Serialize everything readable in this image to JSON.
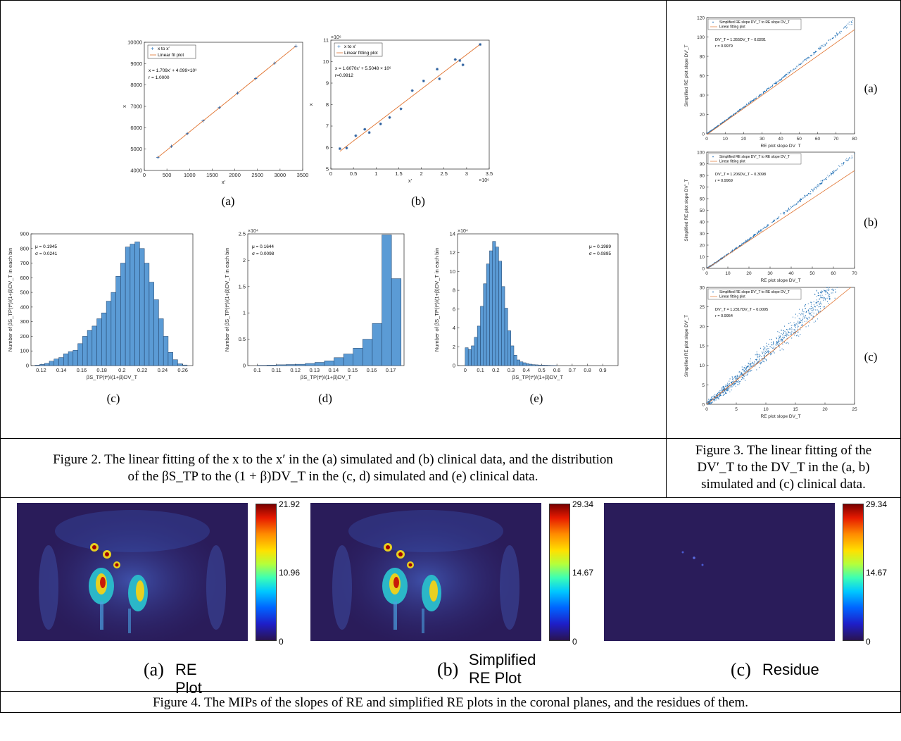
{
  "fig2": {
    "caption_line1": "Figure 2. The linear fitting of the x to the x′ in the (a) simulated and (b) clinical data, and the distribution",
    "caption_line2": "of the βS_TP to the (1 + β)DV_T in the (c, d) simulated and (e) clinical data.",
    "labels": [
      "(a)",
      "(b)",
      "(c)",
      "(d)",
      "(e)"
    ]
  },
  "fig3": {
    "caption_line1": "Figure 3. The linear fitting of the",
    "caption_line2": "DV′_T to the DV_T in the (a, b)",
    "caption_line3": "simulated and (c) clinical data.",
    "labels": [
      "(a)",
      "(b)",
      "(c)"
    ]
  },
  "fig4": {
    "caption": "Figure 4. The MIPs of the slopes of RE and simplified RE plots in the coronal planes, and the residues of them.",
    "panels": [
      {
        "letter": "(a)",
        "title_line1": "RE Plot",
        "title_line2": "",
        "cbar_max": "21.92",
        "cbar_mid": "10.96",
        "cbar_min": "0"
      },
      {
        "letter": "(b)",
        "title_line1": "Simplified",
        "title_line2": "RE Plot",
        "cbar_max": "29.34",
        "cbar_mid": "14.67",
        "cbar_min": "0"
      },
      {
        "letter": "(c)",
        "title_line1": "Residue",
        "title_line2": "",
        "cbar_max": "29.34",
        "cbar_mid": "14.67",
        "cbar_min": "0"
      }
    ]
  },
  "chart_data": [
    {
      "id": "fig2a",
      "type": "scatter",
      "xlabel": "x′",
      "ylabel": "x",
      "xlim": [
        0,
        3500
      ],
      "ylim": [
        4000,
        10000
      ],
      "xticks": [
        0,
        500,
        1000,
        1500,
        2000,
        2500,
        3000,
        3500
      ],
      "yticks": [
        4000,
        5000,
        6000,
        7000,
        8000,
        9000,
        10000
      ],
      "legend": [
        "x to x′",
        "Linear fit plot"
      ],
      "annotations": [
        "x = 1.709x′ + 4.099×10³",
        "r = 1.0000"
      ],
      "points": [
        [
          300,
          4610
        ],
        [
          600,
          5130
        ],
        [
          950,
          5720
        ],
        [
          1300,
          6320
        ],
        [
          1660,
          6940
        ],
        [
          2060,
          7620
        ],
        [
          2460,
          8300
        ],
        [
          2880,
          9020
        ],
        [
          3350,
          9820
        ]
      ],
      "fit": {
        "slope": 1.709,
        "intercept": 4099
      }
    },
    {
      "id": "fig2b",
      "type": "scatter",
      "xlabel": "x′",
      "ylabel": "x",
      "xlim": [
        0,
        3.5
      ],
      "ylim": [
        5,
        11
      ],
      "x_exponent": "×10⁶",
      "y_exponent": "×10⁶",
      "xticks": [
        0,
        0.5,
        1,
        1.5,
        2,
        2.5,
        3,
        3.5
      ],
      "yticks": [
        5,
        6,
        7,
        8,
        9,
        10,
        11
      ],
      "legend": [
        "x to x′",
        "Linear fitting plot"
      ],
      "annotations": [
        "x = 1.6070x′ + 5.5048 × 10⁶",
        "r=0.9912"
      ],
      "points": [
        [
          0.2,
          5.95
        ],
        [
          0.35,
          5.98
        ],
        [
          0.55,
          6.55
        ],
        [
          0.75,
          6.85
        ],
        [
          0.85,
          6.7
        ],
        [
          1.1,
          7.1
        ],
        [
          1.3,
          7.4
        ],
        [
          1.55,
          7.8
        ],
        [
          1.8,
          8.65
        ],
        [
          2.05,
          9.1
        ],
        [
          2.35,
          9.65
        ],
        [
          2.4,
          9.2
        ],
        [
          2.75,
          10.1
        ],
        [
          2.85,
          10.05
        ],
        [
          2.92,
          9.85
        ],
        [
          3.3,
          10.8
        ]
      ],
      "fit": {
        "slope": 1.607,
        "intercept": 5.5048
      }
    },
    {
      "id": "fig2c",
      "type": "bar",
      "xlabel": "βS_TP(t*)/(1+β)DV_T",
      "ylabel": "Number of βS_TP(t*)/(1+β)DV_T in each bin",
      "xlim": [
        0.11,
        0.27
      ],
      "ylim": [
        0,
        900
      ],
      "xticks": [
        0.12,
        0.14,
        0.16,
        0.18,
        0.2,
        0.22,
        0.24,
        0.26
      ],
      "yticks": [
        0,
        100,
        200,
        300,
        400,
        500,
        600,
        700,
        800,
        900
      ],
      "annotations": [
        "μ = 0.1945",
        "σ = 0.0241"
      ],
      "bin_start": 0.114,
      "bin_width": 0.0047,
      "values": [
        3,
        8,
        15,
        30,
        45,
        55,
        80,
        95,
        105,
        150,
        200,
        240,
        270,
        320,
        360,
        440,
        500,
        610,
        700,
        810,
        830,
        845,
        800,
        700,
        570,
        450,
        320,
        200,
        90,
        40,
        12,
        4
      ]
    },
    {
      "id": "fig2d",
      "type": "bar",
      "xlabel": "βS_TP(t*)/(1+β)DV_T",
      "ylabel": "Number of βS_TP(t*)/(1+β)DV_T in each bin",
      "xlim": [
        0.095,
        0.177
      ],
      "ylim": [
        0,
        2.5
      ],
      "y_exponent": "×10⁴",
      "xticks": [
        0.1,
        0.11,
        0.12,
        0.13,
        0.14,
        0.15,
        0.16,
        0.17
      ],
      "yticks": [
        0,
        0.5,
        1,
        1.5,
        2,
        2.5
      ],
      "annotations": [
        "μ = 0.1644",
        "σ = 0.0098"
      ],
      "bin_start": 0.1,
      "bin_width": 0.00503,
      "values": [
        0.005,
        0.01,
        0.015,
        0.02,
        0.025,
        0.04,
        0.06,
        0.09,
        0.15,
        0.22,
        0.33,
        0.5,
        0.8,
        2.48,
        1.65
      ]
    },
    {
      "id": "fig2e",
      "type": "bar",
      "xlabel": "βS_TP(t*)/(1+β)DV_T",
      "ylabel": "Number of βS_TP(t*)/(1+β)DV_T in each bin",
      "xlim": [
        -0.05,
        1.0
      ],
      "ylim": [
        0,
        14
      ],
      "y_exponent": "×10⁴",
      "xticks": [
        0,
        0.1,
        0.2,
        0.3,
        0.4,
        0.5,
        0.6,
        0.7,
        0.8,
        0.9
      ],
      "yticks": [
        0,
        2,
        4,
        6,
        8,
        10,
        12,
        14
      ],
      "annotations": [
        "μ = 0.1989",
        "σ = 0.0895"
      ],
      "bin_start": 0.0,
      "bin_width": 0.0199,
      "values": [
        1.9,
        1.7,
        2.1,
        3.0,
        4.2,
        6.3,
        8.7,
        10.8,
        12.2,
        13.2,
        12.6,
        11.1,
        8.4,
        6.1,
        3.7,
        2.1,
        1.1,
        0.6,
        0.4,
        0.3,
        0.2,
        0.15,
        0.1,
        0.08,
        0.06,
        0.05,
        0.04,
        0.03,
        0.02,
        0.01
      ]
    },
    {
      "id": "fig3a",
      "type": "scatter",
      "xlabel": "RE plot slope DV_T",
      "ylabel": "Simplified RE plot slope DV′_T",
      "xlim": [
        0,
        80
      ],
      "ylim": [
        0,
        120
      ],
      "xticks": [
        0,
        10,
        20,
        30,
        40,
        50,
        60,
        70,
        80
      ],
      "yticks": [
        0,
        20,
        40,
        60,
        80,
        100,
        120
      ],
      "legend": [
        "Simplified RE slope DV′_T to RE slope DV_T",
        "Linear fitting plot"
      ],
      "annotations": [
        "DV′_T = 1.355DV_T − 0.8281",
        "r = 0.9979"
      ],
      "fit": {
        "slope": 1.355,
        "intercept": -0.8281
      },
      "curve": {
        "a": 1.355,
        "b": 0.0015,
        "spread": 1.5,
        "xmax": 79
      }
    },
    {
      "id": "fig3b",
      "type": "scatter",
      "xlabel": "RE plot slope DV_T",
      "ylabel": "Simplified RE plot slope DV′_T",
      "xlim": [
        0,
        70
      ],
      "ylim": [
        0,
        100
      ],
      "xticks": [
        0,
        10,
        20,
        30,
        40,
        50,
        60,
        70
      ],
      "yticks": [
        0,
        10,
        20,
        30,
        40,
        50,
        60,
        70,
        80,
        90,
        100
      ],
      "legend": [
        "Simplified RE slope DV′_T to RE slope DV_T",
        "Linear fitting plot"
      ],
      "annotations": [
        "DV′_T = 1.206DV_T − 0.3098",
        "r = 0.9969"
      ],
      "fit": {
        "slope": 1.206,
        "intercept": -0.3098
      },
      "curve": {
        "a": 1.2,
        "b": 0.003,
        "spread": 1.5,
        "xmax": 70
      }
    },
    {
      "id": "fig3c",
      "type": "scatter",
      "xlabel": "RE plot slope DV_T",
      "ylabel": "Simplified RE plot slope DV′_T",
      "xlim": [
        0,
        25
      ],
      "ylim": [
        0,
        30
      ],
      "xticks": [
        0,
        5,
        10,
        15,
        20,
        25
      ],
      "yticks": [
        0,
        5,
        10,
        15,
        20,
        25,
        30
      ],
      "legend": [
        "Simplified RE slope DV′_T to RE slope DV_T",
        "Linear fitting plot"
      ],
      "annotations": [
        "DV′_T = 1.2317DV_T − 0.0095",
        "r = 0.9954"
      ],
      "fit": {
        "slope": 1.2317,
        "intercept": -0.0095
      },
      "curve": {
        "a": 1.2317,
        "b": 0.008,
        "spread": 3.0,
        "xmax": 22
      }
    }
  ]
}
